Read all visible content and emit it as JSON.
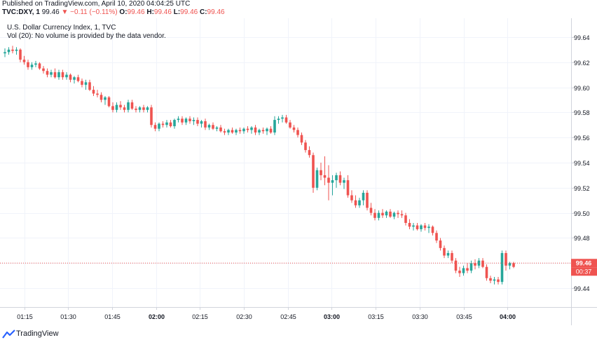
{
  "header": {
    "published": "Published on TradingView.com, April 10, 2020 04:04:25 UTC",
    "symbol": "TVC:DXY, 1",
    "last": "99.46",
    "change": "▼ −0.11 (−0.11%)",
    "o_label": "O:",
    "o_value": "99.46",
    "h_label": "H:",
    "h_value": "99.46",
    "l_label": "L:",
    "l_value": "99.46",
    "c_label": "C:",
    "c_value": "99.46"
  },
  "legend": {
    "title": "U.S. Dollar Currency Index, 1, TVC",
    "volume_note": "Vol (20): No volume is provided by the data vendor."
  },
  "price_badge": {
    "price": "99.46",
    "countdown": "00:37"
  },
  "footer": {
    "brand": "TradingView"
  },
  "colors": {
    "up": "#26a69a",
    "down": "#ef5350",
    "grid": "#f0f3fa",
    "axis_text": "#131722",
    "price_line": "#ef5350"
  },
  "chart_data": {
    "type": "candlestick",
    "title": "U.S. Dollar Currency Index, 1, TVC",
    "ylim": [
      99.425,
      99.655
    ],
    "y_ticks": [
      "99.44",
      "99.46",
      "99.48",
      "99.50",
      "99.52",
      "99.54",
      "99.56",
      "99.58",
      "99.60",
      "99.62",
      "99.64"
    ],
    "x_ticks": [
      "01:15",
      "01:30",
      "01:45",
      "02:00",
      "02:15",
      "02:30",
      "02:45",
      "03:00",
      "03:15",
      "03:30",
      "03:45",
      "04:00"
    ],
    "x_ticks_bold": [
      "02:00",
      "03:00",
      "04:00"
    ],
    "current_price": 99.46,
    "ohlc": [
      [
        99.627,
        99.631,
        99.624,
        99.628
      ],
      [
        99.628,
        99.632,
        99.626,
        99.63
      ],
      [
        99.63,
        99.633,
        99.627,
        99.629
      ],
      [
        99.629,
        99.632,
        99.626,
        99.63
      ],
      [
        99.63,
        99.631,
        99.62,
        99.622
      ],
      [
        99.622,
        99.625,
        99.618,
        99.62
      ],
      [
        99.62,
        99.622,
        99.614,
        99.616
      ],
      [
        99.616,
        99.62,
        99.614,
        99.618
      ],
      [
        99.618,
        99.621,
        99.616,
        99.619
      ],
      [
        99.619,
        99.62,
        99.614,
        99.615
      ],
      [
        99.615,
        99.617,
        99.611,
        99.613
      ],
      [
        99.613,
        99.615,
        99.608,
        99.61
      ],
      [
        99.61,
        99.614,
        99.608,
        99.612
      ],
      [
        99.612,
        99.615,
        99.607,
        99.608
      ],
      [
        99.608,
        99.614,
        99.606,
        99.612
      ],
      [
        99.612,
        99.614,
        99.606,
        99.608
      ],
      [
        99.608,
        99.612,
        99.606,
        99.61
      ],
      [
        99.61,
        99.611,
        99.604,
        99.606
      ],
      [
        99.606,
        99.609,
        99.603,
        99.608
      ],
      [
        99.608,
        99.61,
        99.604,
        99.605
      ],
      [
        99.605,
        99.607,
        99.6,
        99.602
      ],
      [
        99.602,
        99.606,
        99.598,
        99.604
      ],
      [
        99.604,
        99.606,
        99.597,
        99.598
      ],
      [
        99.598,
        99.601,
        99.593,
        99.595
      ],
      [
        99.595,
        99.598,
        99.592,
        99.594
      ],
      [
        99.594,
        99.596,
        99.588,
        99.59
      ],
      [
        99.59,
        99.593,
        99.586,
        99.592
      ],
      [
        99.592,
        99.593,
        99.584,
        99.585
      ],
      [
        99.585,
        99.588,
        99.58,
        99.582
      ],
      [
        99.582,
        99.588,
        99.58,
        99.586
      ],
      [
        99.586,
        99.589,
        99.582,
        99.584
      ],
      [
        99.584,
        99.586,
        99.58,
        99.582
      ],
      [
        99.582,
        99.59,
        99.58,
        99.588
      ],
      [
        99.588,
        99.59,
        99.582,
        99.583
      ],
      [
        99.583,
        99.585,
        99.58,
        99.582
      ],
      [
        99.582,
        99.585,
        99.58,
        99.584
      ],
      [
        99.584,
        99.586,
        99.58,
        99.582
      ],
      [
        99.582,
        99.585,
        99.58,
        99.584
      ],
      [
        99.584,
        99.586,
        99.568,
        99.57
      ],
      [
        99.57,
        99.572,
        99.565,
        99.567
      ],
      [
        99.567,
        99.572,
        99.565,
        99.571
      ],
      [
        99.571,
        99.573,
        99.568,
        99.57
      ],
      [
        99.57,
        99.574,
        99.568,
        99.572
      ],
      [
        99.572,
        99.574,
        99.568,
        99.569
      ],
      [
        99.569,
        99.575,
        99.567,
        99.574
      ],
      [
        99.574,
        99.577,
        99.572,
        99.575
      ],
      [
        99.575,
        99.577,
        99.57,
        99.572
      ],
      [
        99.572,
        99.576,
        99.57,
        99.575
      ],
      [
        99.575,
        99.577,
        99.571,
        99.573
      ],
      [
        99.573,
        99.576,
        99.57,
        99.574
      ],
      [
        99.574,
        99.576,
        99.569,
        99.571
      ],
      [
        99.571,
        99.574,
        99.568,
        99.573
      ],
      [
        99.573,
        99.575,
        99.566,
        99.568
      ],
      [
        99.568,
        99.571,
        99.566,
        99.57
      ],
      [
        99.57,
        99.572,
        99.566,
        99.567
      ],
      [
        99.567,
        99.569,
        99.565,
        99.568
      ],
      [
        99.568,
        99.57,
        99.564,
        99.565
      ],
      [
        99.565,
        99.567,
        99.562,
        99.564
      ],
      [
        99.564,
        99.567,
        99.562,
        99.566
      ],
      [
        99.566,
        99.568,
        99.563,
        99.564
      ],
      [
        99.564,
        99.567,
        99.562,
        99.566
      ],
      [
        99.566,
        99.568,
        99.563,
        99.565
      ],
      [
        99.565,
        99.568,
        99.563,
        99.567
      ],
      [
        99.567,
        99.569,
        99.564,
        99.566
      ],
      [
        99.566,
        99.569,
        99.563,
        99.568
      ],
      [
        99.568,
        99.57,
        99.562,
        99.564
      ],
      [
        99.564,
        99.567,
        99.562,
        99.566
      ],
      [
        99.566,
        99.568,
        99.563,
        99.565
      ],
      [
        99.565,
        99.568,
        99.562,
        99.567
      ],
      [
        99.567,
        99.569,
        99.563,
        99.564
      ],
      [
        99.564,
        99.577,
        99.562,
        99.574
      ],
      [
        99.574,
        99.577,
        99.571,
        99.575
      ],
      [
        99.575,
        99.578,
        99.572,
        99.576
      ],
      [
        99.576,
        99.578,
        99.571,
        99.572
      ],
      [
        99.572,
        99.574,
        99.567,
        99.568
      ],
      [
        99.568,
        99.57,
        99.564,
        99.566
      ],
      [
        99.566,
        99.568,
        99.56,
        99.562
      ],
      [
        99.562,
        99.564,
        99.554,
        99.556
      ],
      [
        99.556,
        99.558,
        99.548,
        99.55
      ],
      [
        99.55,
        99.553,
        99.544,
        99.546
      ],
      [
        99.546,
        99.548,
        99.516,
        99.52
      ],
      [
        99.52,
        99.536,
        99.518,
        99.534
      ],
      [
        99.534,
        99.54,
        99.526,
        99.53
      ],
      [
        99.53,
        99.545,
        99.522,
        99.528
      ],
      [
        99.528,
        99.538,
        99.51,
        99.524
      ],
      [
        99.524,
        99.53,
        99.514,
        99.526
      ],
      [
        99.526,
        99.532,
        99.52,
        99.53
      ],
      [
        99.53,
        99.533,
        99.522,
        99.524
      ],
      [
        99.524,
        99.528,
        99.519,
        99.526
      ],
      [
        99.526,
        99.53,
        99.512,
        99.514
      ],
      [
        99.514,
        99.518,
        99.508,
        99.51
      ],
      [
        99.51,
        99.514,
        99.504,
        99.506
      ],
      [
        99.506,
        99.512,
        99.504,
        99.51
      ],
      [
        99.51,
        99.518,
        99.506,
        99.516
      ],
      [
        99.516,
        99.518,
        99.502,
        99.504
      ],
      [
        99.504,
        99.508,
        99.498,
        99.5
      ],
      [
        99.5,
        99.503,
        99.494,
        99.496
      ],
      [
        99.496,
        99.502,
        99.494,
        99.5
      ],
      [
        99.5,
        99.503,
        99.496,
        99.498
      ],
      [
        99.498,
        99.502,
        99.496,
        99.501
      ],
      [
        99.501,
        99.503,
        99.496,
        99.497
      ],
      [
        99.497,
        99.501,
        99.495,
        99.5
      ],
      [
        99.5,
        99.502,
        99.496,
        99.499
      ],
      [
        99.499,
        99.502,
        99.496,
        99.498
      ],
      [
        99.498,
        99.5,
        99.49,
        99.492
      ],
      [
        99.492,
        99.495,
        99.487,
        99.489
      ],
      [
        99.489,
        99.492,
        99.486,
        99.49
      ],
      [
        99.49,
        99.492,
        99.486,
        99.487
      ],
      [
        99.487,
        99.491,
        99.485,
        99.49
      ],
      [
        99.49,
        99.492,
        99.486,
        99.488
      ],
      [
        99.488,
        99.491,
        99.484,
        99.489
      ],
      [
        99.489,
        99.49,
        99.482,
        99.484
      ],
      [
        99.484,
        99.486,
        99.476,
        99.478
      ],
      [
        99.478,
        99.48,
        99.47,
        99.472
      ],
      [
        99.472,
        99.474,
        99.464,
        99.466
      ],
      [
        99.466,
        99.47,
        99.464,
        99.468
      ],
      [
        99.468,
        99.47,
        99.46,
        99.462
      ],
      [
        99.462,
        99.464,
        99.452,
        99.454
      ],
      [
        99.454,
        99.457,
        99.449,
        99.452
      ],
      [
        99.452,
        99.458,
        99.45,
        99.456
      ],
      [
        99.456,
        99.46,
        99.452,
        99.454
      ],
      [
        99.454,
        99.462,
        99.452,
        99.46
      ],
      [
        99.46,
        99.463,
        99.455,
        99.458
      ],
      [
        99.458,
        99.464,
        99.456,
        99.462
      ],
      [
        99.462,
        99.464,
        99.456,
        99.457
      ],
      [
        99.457,
        99.459,
        99.446,
        99.448
      ],
      [
        99.448,
        99.45,
        99.444,
        99.446
      ],
      [
        99.446,
        99.449,
        99.443,
        99.447
      ],
      [
        99.447,
        99.449,
        99.443,
        99.445
      ],
      [
        99.445,
        99.47,
        99.443,
        99.468
      ],
      [
        99.468,
        99.47,
        99.454,
        99.458
      ],
      [
        99.458,
        99.461,
        99.455,
        99.46
      ],
      [
        99.46,
        99.461,
        99.456,
        99.457
      ]
    ]
  }
}
